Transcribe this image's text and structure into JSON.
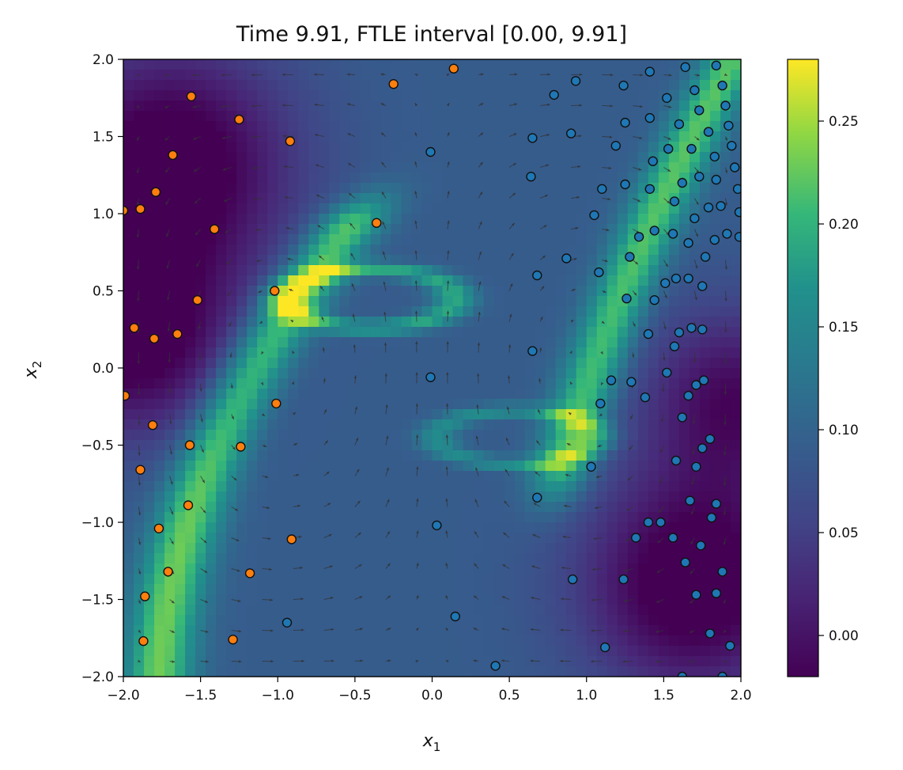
{
  "chart_data": {
    "type": "heatmap",
    "title": "Time 9.91, FTLE interval [0.00, 9.91]",
    "xlabel": "x",
    "xlabel_sub": "1",
    "ylabel": "x",
    "ylabel_sub": "2",
    "xlim": [
      -2.0,
      2.0
    ],
    "ylim": [
      -2.0,
      2.0
    ],
    "xticks": [
      -2.0,
      -1.5,
      -1.0,
      -0.5,
      0.0,
      0.5,
      1.0,
      1.5,
      2.0
    ],
    "xtick_labels": [
      "−2.0",
      "−1.5",
      "−1.0",
      "−0.5",
      "0.0",
      "0.5",
      "1.0",
      "1.5",
      "2.0"
    ],
    "yticks": [
      2.0,
      1.5,
      1.0,
      0.5,
      0.0,
      -0.5,
      -1.0,
      -1.5,
      -2.0
    ],
    "ytick_labels": [
      "2.0",
      "1.5",
      "1.0",
      "0.5",
      "0.0",
      "−0.5",
      "−1.0",
      "−1.5",
      "−2.0"
    ],
    "colorbar": {
      "vmin": -0.02,
      "vmax": 0.28,
      "ticks": [
        0.25,
        0.2,
        0.15,
        0.1,
        0.05,
        0.0
      ],
      "tick_labels": [
        "0.25",
        "0.20",
        "0.15",
        "0.10",
        "0.05",
        "0.00"
      ]
    },
    "heatmap_grid": {
      "nx": 60,
      "ny": 60,
      "colormap": "viridis",
      "field": "FTLE"
    },
    "quiver": {
      "nx": 20,
      "ny": 20,
      "color": "#333333"
    },
    "point_styles": {
      "orange": {
        "fill": "#ff7f0e"
      },
      "blue": {
        "fill": "#1f77b4"
      }
    },
    "orange_points": [
      [
        -1.56,
        1.76
      ],
      [
        -1.25,
        1.61
      ],
      [
        -0.92,
        1.47
      ],
      [
        -0.25,
        1.84
      ],
      [
        0.14,
        1.94
      ],
      [
        -1.68,
        1.38
      ],
      [
        -1.79,
        1.14
      ],
      [
        -2.0,
        1.02
      ],
      [
        -1.89,
        1.03
      ],
      [
        -1.41,
        0.9
      ],
      [
        -0.36,
        0.94
      ],
      [
        -1.02,
        0.5
      ],
      [
        -1.52,
        0.44
      ],
      [
        -1.93,
        0.26
      ],
      [
        -1.8,
        0.19
      ],
      [
        -1.65,
        0.22
      ],
      [
        -1.99,
        -0.18
      ],
      [
        -1.81,
        -0.37
      ],
      [
        -1.01,
        -0.23
      ],
      [
        -1.57,
        -0.5
      ],
      [
        -1.24,
        -0.51
      ],
      [
        -1.89,
        -0.66
      ],
      [
        -1.58,
        -0.89
      ],
      [
        -1.77,
        -1.04
      ],
      [
        -0.91,
        -1.11
      ],
      [
        -1.71,
        -1.32
      ],
      [
        -1.18,
        -1.33
      ],
      [
        -1.86,
        -1.48
      ],
      [
        -1.87,
        -1.77
      ],
      [
        -1.29,
        -1.76
      ]
    ],
    "blue_points": [
      [
        1.84,
        1.96
      ],
      [
        1.64,
        1.95
      ],
      [
        1.41,
        1.92
      ],
      [
        0.93,
        1.86
      ],
      [
        0.79,
        1.77
      ],
      [
        1.24,
        1.83
      ],
      [
        1.52,
        1.75
      ],
      [
        1.7,
        1.8
      ],
      [
        1.88,
        1.83
      ],
      [
        1.9,
        1.7
      ],
      [
        1.73,
        1.67
      ],
      [
        1.41,
        1.62
      ],
      [
        1.25,
        1.59
      ],
      [
        1.6,
        1.58
      ],
      [
        1.92,
        1.57
      ],
      [
        0.65,
        1.49
      ],
      [
        0.9,
        1.52
      ],
      [
        1.19,
        1.44
      ],
      [
        1.79,
        1.53
      ],
      [
        1.53,
        1.42
      ],
      [
        1.68,
        1.42
      ],
      [
        1.94,
        1.44
      ],
      [
        1.83,
        1.37
      ],
      [
        1.43,
        1.34
      ],
      [
        1.96,
        1.3
      ],
      [
        -0.01,
        1.4
      ],
      [
        0.64,
        1.24
      ],
      [
        1.1,
        1.16
      ],
      [
        1.25,
        1.19
      ],
      [
        1.41,
        1.16
      ],
      [
        1.62,
        1.2
      ],
      [
        1.73,
        1.24
      ],
      [
        1.84,
        1.22
      ],
      [
        1.98,
        1.16
      ],
      [
        1.57,
        1.08
      ],
      [
        1.05,
        0.99
      ],
      [
        1.7,
        0.97
      ],
      [
        1.79,
        1.04
      ],
      [
        1.87,
        1.05
      ],
      [
        1.99,
        1.01
      ],
      [
        1.34,
        0.85
      ],
      [
        1.44,
        0.89
      ],
      [
        1.56,
        0.87
      ],
      [
        1.83,
        0.83
      ],
      [
        1.91,
        0.87
      ],
      [
        1.99,
        0.85
      ],
      [
        0.87,
        0.71
      ],
      [
        1.28,
        0.72
      ],
      [
        1.66,
        0.81
      ],
      [
        1.77,
        0.72
      ],
      [
        0.68,
        0.6
      ],
      [
        1.08,
        0.62
      ],
      [
        1.51,
        0.55
      ],
      [
        1.58,
        0.58
      ],
      [
        1.66,
        0.58
      ],
      [
        1.75,
        0.53
      ],
      [
        1.26,
        0.45
      ],
      [
        1.44,
        0.44
      ],
      [
        1.4,
        0.22
      ],
      [
        1.6,
        0.23
      ],
      [
        1.68,
        0.26
      ],
      [
        1.75,
        0.25
      ],
      [
        0.65,
        0.11
      ],
      [
        1.57,
        0.14
      ],
      [
        1.52,
        -0.03
      ],
      [
        1.71,
        -0.11
      ],
      [
        1.76,
        -0.08
      ],
      [
        1.66,
        -0.18
      ],
      [
        1.16,
        -0.08
      ],
      [
        1.29,
        -0.09
      ],
      [
        -0.01,
        -0.06
      ],
      [
        1.09,
        -0.23
      ],
      [
        1.38,
        -0.19
      ],
      [
        1.62,
        -0.32
      ],
      [
        1.8,
        -0.46
      ],
      [
        1.75,
        -0.52
      ],
      [
        1.58,
        -0.6
      ],
      [
        1.71,
        -0.64
      ],
      [
        1.03,
        -0.64
      ],
      [
        0.68,
        -0.84
      ],
      [
        1.67,
        -0.86
      ],
      [
        1.84,
        -0.88
      ],
      [
        1.81,
        -0.97
      ],
      [
        1.4,
        -1.0
      ],
      [
        1.48,
        -1.0
      ],
      [
        0.03,
        -1.02
      ],
      [
        1.32,
        -1.1
      ],
      [
        1.56,
        -1.1
      ],
      [
        1.74,
        -1.15
      ],
      [
        1.64,
        -1.26
      ],
      [
        1.88,
        -1.32
      ],
      [
        0.91,
        -1.37
      ],
      [
        1.24,
        -1.37
      ],
      [
        1.71,
        -1.47
      ],
      [
        1.84,
        -1.46
      ],
      [
        0.15,
        -1.61
      ],
      [
        -0.94,
        -1.65
      ],
      [
        1.12,
        -1.81
      ],
      [
        1.8,
        -1.72
      ],
      [
        1.93,
        -1.8
      ],
      [
        0.41,
        -1.93
      ],
      [
        1.62,
        -2.0
      ],
      [
        1.88,
        -2.0
      ]
    ]
  }
}
